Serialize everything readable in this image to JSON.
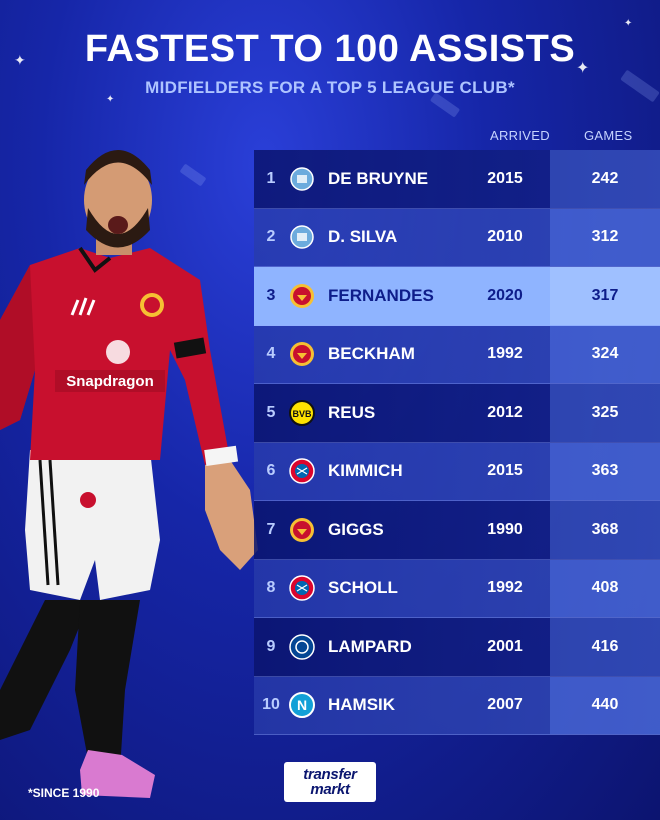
{
  "header": {
    "title": "FASTEST TO 100 ASSISTS",
    "subtitle": "MIDFIELDERS FOR A TOP 5 LEAGUE CLUB*"
  },
  "columns": {
    "arrived": "ARRIVED",
    "games": "GAMES"
  },
  "rows": [
    {
      "rank": "1",
      "crest": "man-city-crest",
      "name": "DE BRUYNE",
      "arrived": "2015",
      "games": "242"
    },
    {
      "rank": "2",
      "crest": "man-city-crest",
      "name": "D. SILVA",
      "arrived": "2010",
      "games": "312"
    },
    {
      "rank": "3",
      "crest": "man-united-crest",
      "name": "FERNANDES",
      "arrived": "2020",
      "games": "317"
    },
    {
      "rank": "4",
      "crest": "man-united-crest",
      "name": "BECKHAM",
      "arrived": "1992",
      "games": "324"
    },
    {
      "rank": "5",
      "crest": "dortmund-crest",
      "name": "REUS",
      "arrived": "2012",
      "games": "325"
    },
    {
      "rank": "6",
      "crest": "bayern-crest",
      "name": "KIMMICH",
      "arrived": "2015",
      "games": "363"
    },
    {
      "rank": "7",
      "crest": "man-united-crest",
      "name": "GIGGS",
      "arrived": "1990",
      "games": "368"
    },
    {
      "rank": "8",
      "crest": "bayern-crest",
      "name": "SCHOLL",
      "arrived": "1992",
      "games": "408"
    },
    {
      "rank": "9",
      "crest": "chelsea-crest",
      "name": "LAMPARD",
      "arrived": "2001",
      "games": "416"
    },
    {
      "rank": "10",
      "crest": "napoli-crest",
      "name": "HAMSIK",
      "arrived": "2007",
      "games": "440"
    }
  ],
  "highlight_rank": "3",
  "player_shirt": {
    "sponsor": "Snapdragon"
  },
  "footer": {
    "note": "*SINCE 1990",
    "logo_line1": "transfer",
    "logo_line2": "markt"
  },
  "colors": {
    "background": "#1626a8",
    "highlight": "#8fb4ff",
    "man_united_red": "#c8102e",
    "man_city_blue": "#6cabdd",
    "dortmund_yellow": "#fde100",
    "bayern_red": "#dc052d",
    "chelsea_blue": "#034694",
    "napoli_blue": "#12a0d7"
  }
}
